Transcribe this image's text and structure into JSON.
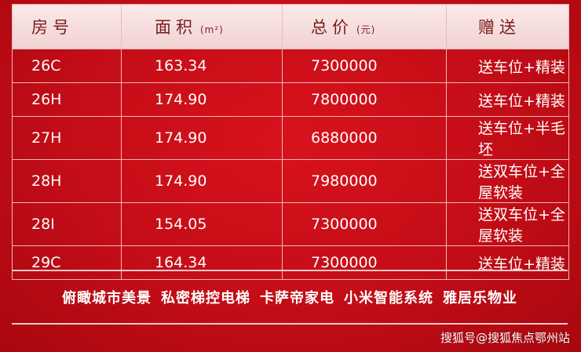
{
  "table": {
    "header": [
      "房号",
      "面积",
      "总价",
      "赠送"
    ],
    "units": [
      "(m²)",
      "(元)"
    ],
    "rows": [
      [
        "26C",
        "163.34",
        "7300000",
        "送车位+精装"
      ],
      [
        "26H",
        "174.90",
        "7800000",
        "送车位+精装"
      ],
      [
        "27H",
        "174.90",
        "6880000",
        "送车位+半毛坯"
      ],
      [
        "28H",
        "174.90",
        "7980000",
        "送双车位+全屋软装"
      ],
      [
        "28I",
        "154.05",
        "7300000",
        "送双车位+全屋软装"
      ],
      [
        "29C",
        "164.34",
        "7300000",
        "送车位+精装"
      ]
    ]
  },
  "features": [
    "俯瞰城市美景",
    "私密梯控电梯",
    "卡萨帝家电",
    "小米智能系统",
    "雅居乐物业"
  ],
  "watermark": "搜狐号@搜狐焦点鄂州站"
}
